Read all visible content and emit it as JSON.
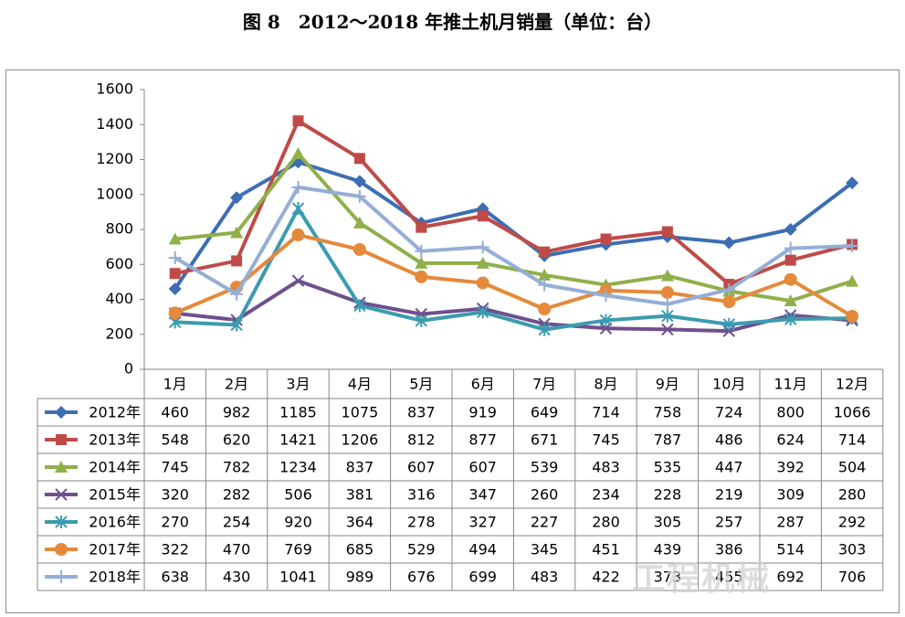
{
  "caption": "图 8　2012～2018 年推土机月销量（单位：台）",
  "watermark": "工程机械",
  "chart_data": {
    "type": "line",
    "title": "",
    "xlabel": "",
    "ylabel": "",
    "ylim": [
      0,
      1600
    ],
    "yticks": [
      0,
      200,
      400,
      600,
      800,
      1000,
      1200,
      1400,
      1600
    ],
    "grid": false,
    "legend": "data-table-left",
    "categories": [
      "1月",
      "2月",
      "3月",
      "4月",
      "5月",
      "6月",
      "7月",
      "8月",
      "9月",
      "10月",
      "11月",
      "12月"
    ],
    "series": [
      {
        "name": "2012年",
        "color": "#3d6eb4",
        "marker": "diamond",
        "values": [
          460,
          982,
          1185,
          1075,
          837,
          919,
          649,
          714,
          758,
          724,
          800,
          1066
        ]
      },
      {
        "name": "2013年",
        "color": "#be4b48",
        "marker": "square",
        "values": [
          548,
          620,
          1421,
          1206,
          812,
          877,
          671,
          745,
          787,
          486,
          624,
          714
        ]
      },
      {
        "name": "2014年",
        "color": "#8fb04a",
        "marker": "triangle",
        "values": [
          745,
          782,
          1234,
          837,
          607,
          607,
          539,
          483,
          535,
          447,
          392,
          504
        ]
      },
      {
        "name": "2015年",
        "color": "#6f4f8e",
        "marker": "x",
        "values": [
          320,
          282,
          506,
          381,
          316,
          347,
          260,
          234,
          228,
          219,
          309,
          280
        ]
      },
      {
        "name": "2016年",
        "color": "#3b9bb0",
        "marker": "star",
        "values": [
          270,
          254,
          920,
          364,
          278,
          327,
          227,
          280,
          305,
          257,
          287,
          292
        ]
      },
      {
        "name": "2017年",
        "color": "#e5893b",
        "marker": "circle",
        "values": [
          322,
          470,
          769,
          685,
          529,
          494,
          345,
          451,
          439,
          386,
          514,
          303
        ]
      },
      {
        "name": "2018年",
        "color": "#95aed6",
        "marker": "plus",
        "values": [
          638,
          430,
          1041,
          989,
          676,
          699,
          483,
          422,
          373,
          455,
          692,
          706
        ]
      }
    ]
  }
}
